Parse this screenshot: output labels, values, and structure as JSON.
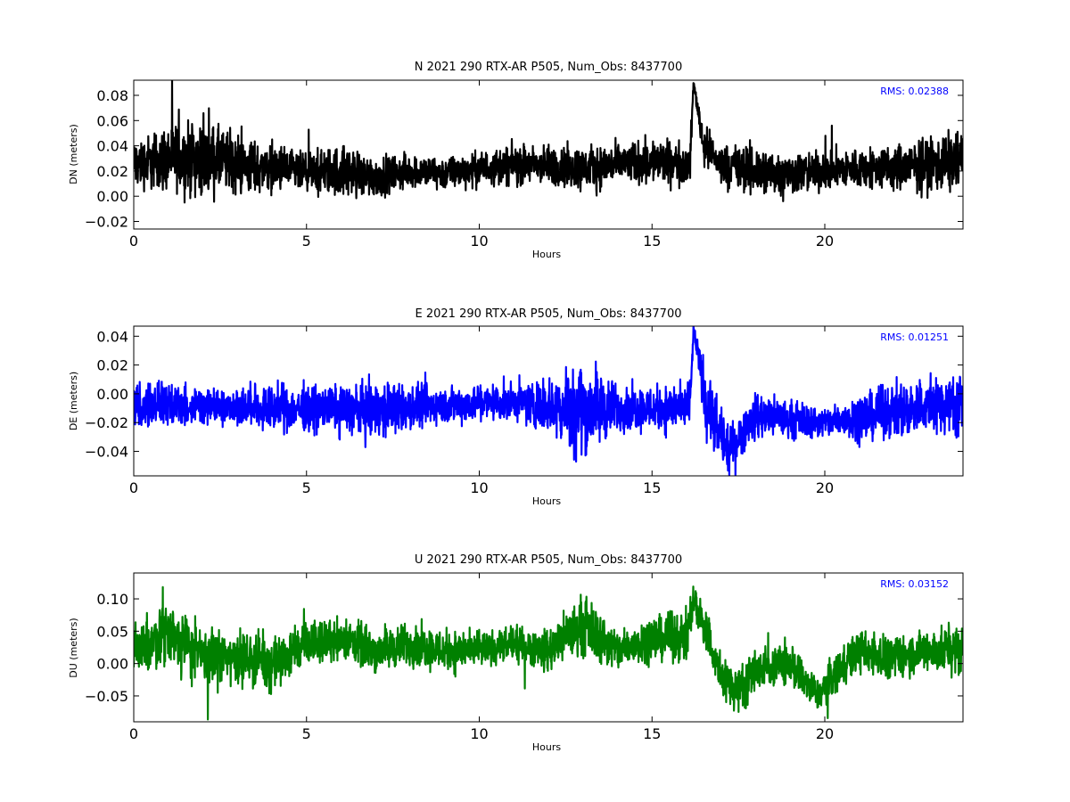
{
  "chart_data": [
    {
      "type": "line",
      "title": "N 2021 290 RTX-AR  P505, Num_Obs: 8437700",
      "xlabel": "Hours",
      "ylabel": "DN (meters)",
      "xlim": [
        0,
        24
      ],
      "ylim": [
        -0.026,
        0.092
      ],
      "xticks": [
        0,
        5,
        10,
        15,
        20
      ],
      "xtick_labels": [
        "0",
        "5",
        "10",
        "15",
        "20"
      ],
      "yticks": [
        -0.02,
        0.0,
        0.02,
        0.04,
        0.06,
        0.08
      ],
      "ytick_labels": [
        "−0.02",
        "0.00",
        "0.02",
        "0.04",
        "0.06",
        "0.08"
      ],
      "annotation": "RMS:  0.02388",
      "color": "#000000",
      "grid": false,
      "series": [
        {
          "x": [
            0,
            1,
            2,
            3,
            4,
            5,
            6,
            7,
            8,
            9,
            10,
            11,
            12,
            13,
            14,
            15,
            16.1,
            16.2,
            16.5,
            17,
            18,
            19,
            20,
            21,
            22,
            23,
            24
          ],
          "y": [
            0.025,
            0.03,
            0.03,
            0.025,
            0.022,
            0.018,
            0.02,
            0.015,
            0.02,
            0.018,
            0.022,
            0.025,
            0.024,
            0.022,
            0.025,
            0.028,
            0.025,
            0.09,
            0.04,
            0.025,
            0.02,
            0.018,
            0.02,
            0.022,
            0.022,
            0.025,
            0.028
          ],
          "spread": [
            0.014,
            0.02,
            0.022,
            0.018,
            0.014,
            0.012,
            0.016,
            0.012,
            0.01,
            0.01,
            0.01,
            0.012,
            0.012,
            0.014,
            0.012,
            0.014,
            0.012,
            0.003,
            0.012,
            0.012,
            0.016,
            0.012,
            0.012,
            0.012,
            0.014,
            0.016,
            0.02
          ]
        }
      ]
    },
    {
      "type": "line",
      "title": "E 2021 290 RTX-AR  P505, Num_Obs: 8437700",
      "xlabel": "Hours",
      "ylabel": "DE (meters)",
      "xlim": [
        0,
        24
      ],
      "ylim": [
        -0.057,
        0.047
      ],
      "xticks": [
        0,
        5,
        10,
        15,
        20
      ],
      "xtick_labels": [
        "0",
        "5",
        "10",
        "15",
        "20"
      ],
      "yticks": [
        -0.04,
        -0.02,
        0.0,
        0.02,
        0.04
      ],
      "ytick_labels": [
        "−0.04",
        "−0.02",
        "0.00",
        "0.02",
        "0.04"
      ],
      "annotation": "RMS:  0.01251",
      "color": "#0000ff",
      "grid": false,
      "series": [
        {
          "x": [
            0,
            1,
            2,
            3,
            4,
            5,
            6,
            7,
            8,
            9,
            10,
            11,
            12,
            12.8,
            13.5,
            14,
            15,
            16.1,
            16.2,
            16.6,
            17.2,
            18,
            19,
            20,
            21,
            22,
            23,
            24
          ],
          "y": [
            -0.008,
            -0.008,
            -0.008,
            -0.008,
            -0.01,
            -0.01,
            -0.01,
            -0.012,
            -0.01,
            -0.008,
            -0.006,
            -0.006,
            -0.008,
            -0.01,
            -0.01,
            -0.01,
            -0.01,
            -0.01,
            0.045,
            -0.01,
            -0.04,
            -0.015,
            -0.018,
            -0.02,
            -0.016,
            -0.012,
            -0.008,
            -0.006
          ],
          "spread": [
            0.012,
            0.012,
            0.01,
            0.01,
            0.012,
            0.012,
            0.012,
            0.016,
            0.012,
            0.01,
            0.01,
            0.01,
            0.014,
            0.026,
            0.02,
            0.012,
            0.012,
            0.012,
            0.002,
            0.02,
            0.012,
            0.012,
            0.01,
            0.008,
            0.012,
            0.014,
            0.016,
            0.016
          ]
        }
      ]
    },
    {
      "type": "line",
      "title": "U 2021 290 RTX-AR  P505, Num_Obs: 8437700",
      "xlabel": "Hours",
      "ylabel": "DU (meters)",
      "xlim": [
        0,
        24
      ],
      "ylim": [
        -0.09,
        0.14
      ],
      "xticks": [
        0,
        5,
        10,
        15,
        20
      ],
      "xtick_labels": [
        "0",
        "5",
        "10",
        "15",
        "20"
      ],
      "yticks": [
        -0.05,
        0.0,
        0.05,
        0.1
      ],
      "ytick_labels": [
        "−0.05",
        "0.00",
        "0.05",
        "0.10"
      ],
      "annotation": "RMS:  0.03152",
      "color": "#008000",
      "grid": false,
      "series": [
        {
          "x": [
            0,
            1,
            2,
            3,
            4,
            5,
            6,
            7,
            8,
            9,
            10,
            11,
            12,
            13,
            14,
            15,
            16,
            16.2,
            16.5,
            17,
            17.5,
            18,
            19,
            19.8,
            20.5,
            21,
            22,
            23,
            24
          ],
          "y": [
            0.02,
            0.05,
            0.01,
            0.01,
            0.0,
            0.03,
            0.04,
            0.02,
            0.03,
            0.02,
            0.02,
            0.03,
            0.02,
            0.06,
            0.02,
            0.04,
            0.04,
            0.1,
            0.06,
            -0.02,
            -0.04,
            -0.01,
            0.0,
            -0.05,
            0.0,
            0.02,
            0.01,
            0.02,
            0.02
          ],
          "spread": [
            0.03,
            0.04,
            0.035,
            0.03,
            0.03,
            0.025,
            0.025,
            0.025,
            0.025,
            0.025,
            0.02,
            0.02,
            0.025,
            0.035,
            0.025,
            0.025,
            0.03,
            0.02,
            0.03,
            0.025,
            0.03,
            0.025,
            0.025,
            0.02,
            0.025,
            0.025,
            0.025,
            0.025,
            0.03
          ]
        }
      ]
    }
  ]
}
